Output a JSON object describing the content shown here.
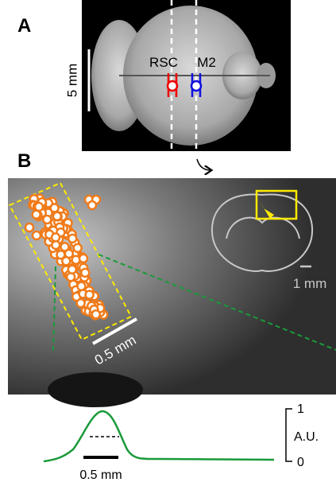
{
  "panel_a": {
    "label": "A",
    "scale_bar": "5 mm",
    "regions": [
      "RSC",
      "M2"
    ]
  },
  "panel_b": {
    "label": "B",
    "scale_bar": "0.5 mm",
    "inset_scale_bar": "1 mm"
  },
  "profile": {
    "scale_bar": "0.5 mm",
    "axis_top": 1,
    "axis_label": "A.U.",
    "axis_bottom": 0
  }
}
